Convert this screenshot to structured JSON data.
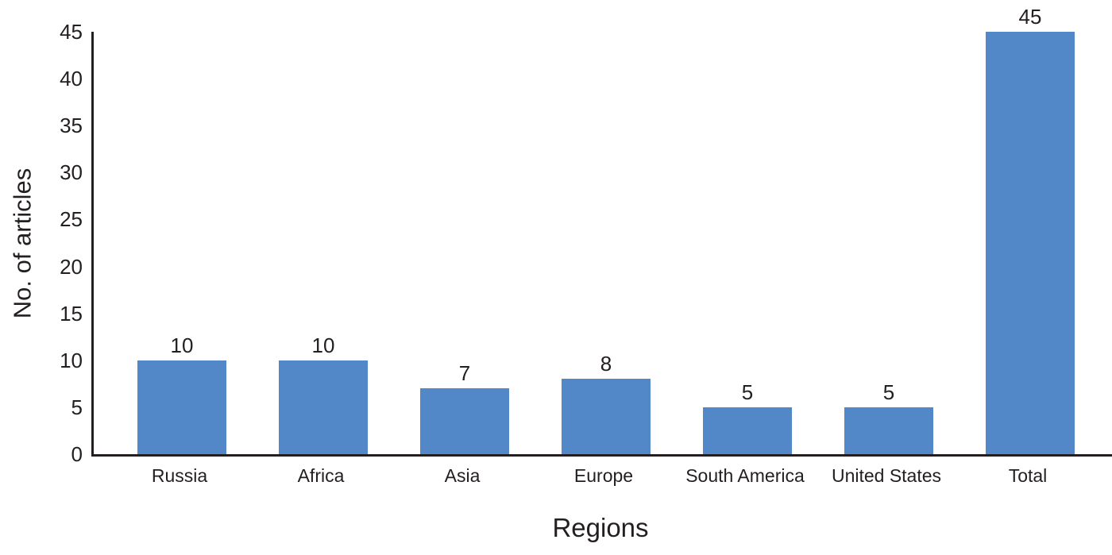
{
  "chart_data": {
    "type": "bar",
    "categories": [
      "Russia",
      "Africa",
      "Asia",
      "Europe",
      "South America",
      "United States",
      "Total"
    ],
    "values": [
      10,
      10,
      7,
      8,
      5,
      5,
      45
    ],
    "value_labels": [
      "10",
      "10",
      "7",
      "8",
      "5",
      "5",
      "45"
    ],
    "title": "",
    "xlabel": "Regions",
    "ylabel": "No. of articles",
    "ylim": [
      0,
      45
    ],
    "yticks": [
      0,
      5,
      10,
      15,
      20,
      25,
      30,
      35,
      40,
      45
    ],
    "grid": false,
    "legend": "none",
    "bar_color": "#5287C8",
    "axis_color": "#231F20",
    "text_color": "#231F20"
  }
}
